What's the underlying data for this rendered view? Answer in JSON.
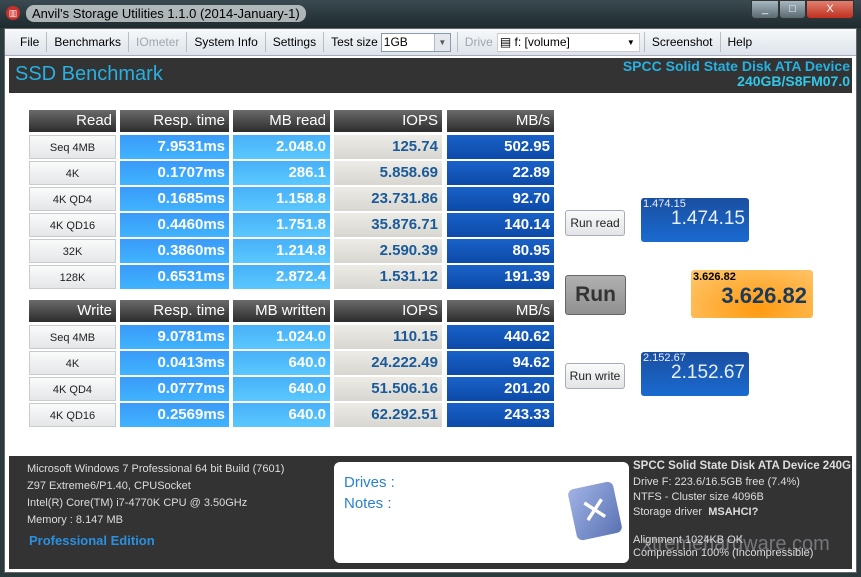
{
  "window": {
    "title": "Anvil's Storage Utilities 1.1.0 (2014-January-1)",
    "minimize": "_",
    "maximize": "□",
    "close": "X"
  },
  "toolbar": {
    "file": "File",
    "benchmarks": "Benchmarks",
    "iometer": "IOmeter",
    "system_info": "System Info",
    "settings": "Settings",
    "test_size_label": "Test size",
    "test_size_value": "1GB",
    "drive_label": "Drive",
    "drive_value": "f: [volume]",
    "screenshot": "Screenshot",
    "help": "Help"
  },
  "header": {
    "title": "SSD Benchmark",
    "device_line1": "SPCC Solid State Disk ATA Device",
    "device_line2": "240GB/S8FM07.0"
  },
  "read": {
    "headers": [
      "Read",
      "Resp. time",
      "MB read",
      "IOPS",
      "MB/s"
    ],
    "rows": [
      [
        "Seq 4MB",
        "7.9531ms",
        "2.048.0",
        "125.74",
        "502.95"
      ],
      [
        "4K",
        "0.1707ms",
        "286.1",
        "5.858.69",
        "22.89"
      ],
      [
        "4K QD4",
        "0.1685ms",
        "1.158.8",
        "23.731.86",
        "92.70"
      ],
      [
        "4K QD16",
        "0.4460ms",
        "1.751.8",
        "35.876.71",
        "140.14"
      ],
      [
        "32K",
        "0.3860ms",
        "1.214.8",
        "2.590.39",
        "80.95"
      ],
      [
        "128K",
        "0.6531ms",
        "2.872.4",
        "1.531.12",
        "191.39"
      ]
    ]
  },
  "write": {
    "headers": [
      "Write",
      "Resp. time",
      "MB written",
      "IOPS",
      "MB/s"
    ],
    "rows": [
      [
        "Seq 4MB",
        "9.0781ms",
        "1.024.0",
        "110.15",
        "440.62"
      ],
      [
        "4K",
        "0.0413ms",
        "640.0",
        "24.222.49",
        "94.62"
      ],
      [
        "4K QD4",
        "0.0777ms",
        "640.0",
        "51.506.16",
        "201.20"
      ],
      [
        "4K QD16",
        "0.2569ms",
        "640.0",
        "62.292.51",
        "243.33"
      ]
    ]
  },
  "scores": {
    "run_read": "Run read",
    "run": "Run",
    "run_write": "Run write",
    "read_small": "1.474.15",
    "read_big": "1.474.15",
    "total_small": "3.626.82",
    "total_big": "3.626.82",
    "write_small": "2.152.67",
    "write_big": "2.152.67"
  },
  "system": {
    "os": "Microsoft Windows 7 Professional  64 bit Build (7601)",
    "board": "Z97 Extreme6/P1.40, CPUSocket",
    "cpu": "Intel(R) Core(TM) i7-4770K CPU @ 3.50GHz",
    "memory": "Memory : 8.147 MB",
    "edition": "Professional Edition"
  },
  "notes": {
    "drives": "Drives :",
    "notes": "Notes :"
  },
  "device": {
    "name": "SPCC Solid State Disk ATA Device 240G",
    "free": "Drive F: 223.6/16.5GB free (7.4%)",
    "fs": "NTFS - Cluster size 4096B",
    "driver_label": "Storage driver",
    "driver_value": "MSAHCI?",
    "alignment": "Alignment 1024KB OK",
    "compression": "Compression 100% (Incompressible)"
  },
  "watermark": "xtremehardware.com"
}
